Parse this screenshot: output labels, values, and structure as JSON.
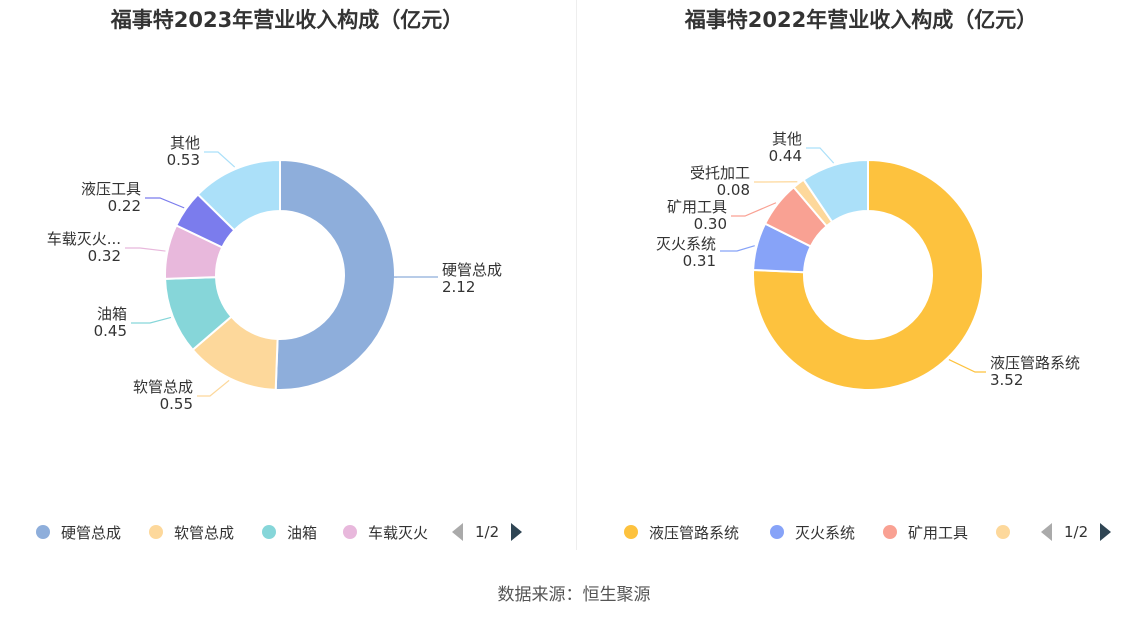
{
  "charts": [
    {
      "title": "福事特2023年营业收入构成（亿元）",
      "legend": [
        "硬管总成",
        "软管总成",
        "油箱",
        "车载灭火"
      ],
      "pager": "1/2"
    },
    {
      "title": "福事特2022年营业收入构成（亿元）",
      "legend": [
        "液压管路系统",
        "灭火系统",
        "矿用工具",
        ""
      ],
      "pager": "1/2"
    }
  ],
  "source": "数据来源：恒生聚源",
  "chart_data": [
    {
      "type": "pie",
      "donut": true,
      "title": "福事特2023年营业收入构成（亿元）",
      "categories": [
        "硬管总成",
        "软管总成",
        "油箱",
        "车载灭火...",
        "液压工具",
        "其他"
      ],
      "values": [
        2.12,
        0.55,
        0.45,
        0.32,
        0.22,
        0.53
      ],
      "value_labels": [
        "2.12",
        "0.55",
        "0.45",
        "0.32",
        "0.22",
        "0.53"
      ],
      "colors": [
        "#8eaedb",
        "#fdd89b",
        "#86d6d9",
        "#e8b8dc",
        "#7b7ced",
        "#abe0f9"
      ],
      "legend_position": "bottom"
    },
    {
      "type": "pie",
      "donut": true,
      "title": "福事特2022年营业收入构成（亿元）",
      "categories": [
        "液压管路系统",
        "灭火系统",
        "矿用工具",
        "受托加工",
        "其他"
      ],
      "values": [
        3.52,
        0.31,
        0.3,
        0.08,
        0.44
      ],
      "value_labels": [
        "3.52",
        "0.31",
        "0.30",
        "0.08",
        "0.44"
      ],
      "colors": [
        "#fdc23e",
        "#87a3f8",
        "#f9a193",
        "#fdd89b",
        "#abe0f9"
      ],
      "legend_position": "bottom"
    }
  ]
}
